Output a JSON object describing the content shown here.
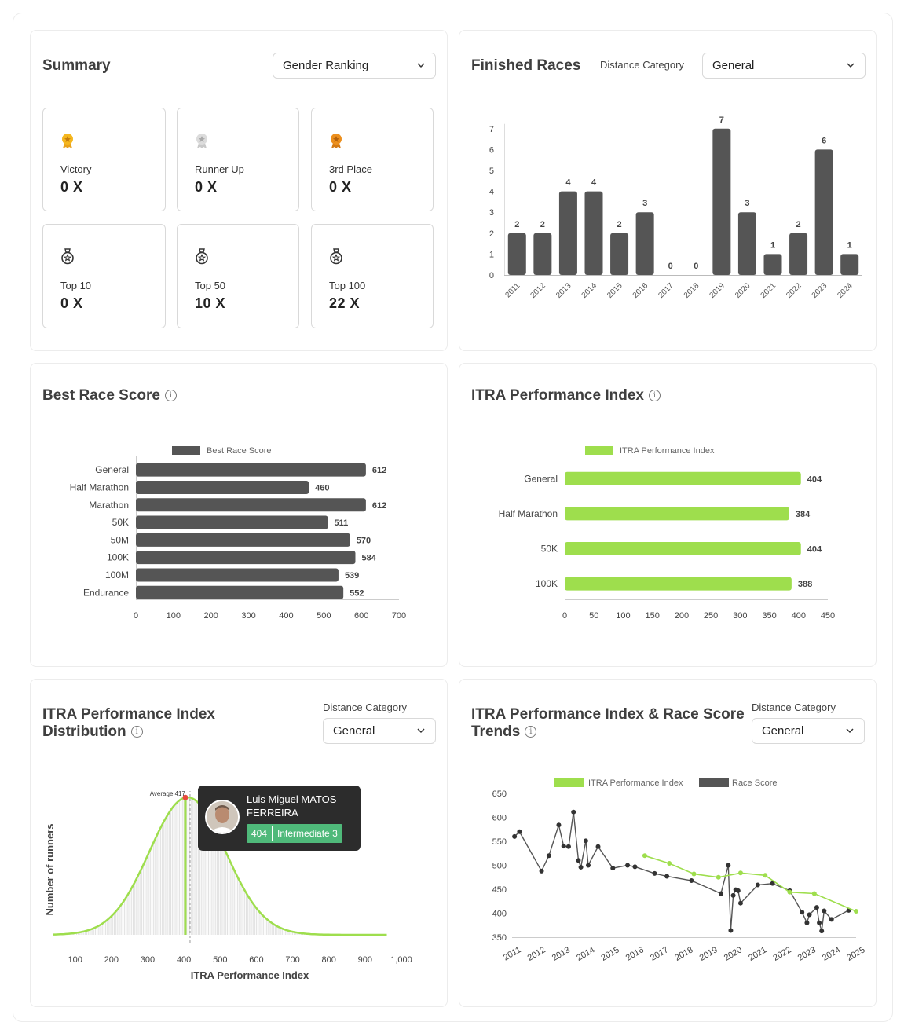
{
  "summary": {
    "title": "Summary",
    "ranking_select": "Gender Ranking",
    "tiles": [
      {
        "label": "Victory",
        "value": "0 X",
        "icon": "gold-medal-icon"
      },
      {
        "label": "Runner Up",
        "value": "0 X",
        "icon": "silver-medal-icon"
      },
      {
        "label": "3rd Place",
        "value": "0 X",
        "icon": "bronze-medal-icon"
      },
      {
        "label": "Top 10",
        "value": "0 X",
        "icon": "badge-icon"
      },
      {
        "label": "Top 50",
        "value": "10 X",
        "icon": "badge-icon"
      },
      {
        "label": "Top 100",
        "value": "22 X",
        "icon": "badge-icon"
      }
    ]
  },
  "finished_races": {
    "title": "Finished Races",
    "category_label": "Distance Category",
    "category_select": "General"
  },
  "best_race_score": {
    "title": "Best Race Score"
  },
  "itra_index": {
    "title": "ITRA Performance Index"
  },
  "distribution": {
    "title_line1": "ITRA Performance Index",
    "title_line2": "Distribution",
    "category_label": "Distance Category",
    "category_select": "General",
    "average_label": "Average:417",
    "y_label": "Number of runners",
    "x_label": "ITRA Performance Index",
    "tooltip": {
      "name": "Luis Miguel MATOS FERREIRA",
      "score": "404",
      "level": "Intermediate 3"
    }
  },
  "trends": {
    "title_line1": "ITRA Performance Index & Race Score",
    "title_line2": "Trends",
    "category_label": "Distance Category",
    "category_select": "General"
  },
  "colors": {
    "dark_bar": "#555555",
    "green": "#9ede4d",
    "tooltip_bg": "#2c2c2c",
    "badge": "#4fb97a"
  },
  "chart_data": [
    {
      "id": "finished-races",
      "type": "bar",
      "title": "Finished Races",
      "categories": [
        "2011",
        "2012",
        "2013",
        "2014",
        "2015",
        "2016",
        "2017",
        "2018",
        "2019",
        "2020",
        "2021",
        "2022",
        "2023",
        "2024"
      ],
      "values": [
        2,
        2,
        4,
        4,
        2,
        3,
        0,
        0,
        7,
        3,
        1,
        2,
        6,
        1
      ],
      "ylim": [
        0,
        7
      ],
      "yticks": [
        0,
        1,
        2,
        3,
        4,
        5,
        6,
        7
      ]
    },
    {
      "id": "best-race-score",
      "type": "bar",
      "orientation": "horizontal",
      "title": "Best Race Score",
      "legend": "Best Race Score",
      "categories": [
        "General",
        "Half Marathon",
        "Marathon",
        "50K",
        "50M",
        "100K",
        "100M",
        "Endurance"
      ],
      "values": [
        612,
        460,
        612,
        511,
        570,
        584,
        539,
        552
      ],
      "xlim": [
        0,
        700
      ],
      "xticks": [
        0,
        100,
        200,
        300,
        400,
        500,
        600,
        700
      ]
    },
    {
      "id": "itra-performance-index",
      "type": "bar",
      "orientation": "horizontal",
      "title": "ITRA Performance Index",
      "legend": "ITRA Performance Index",
      "categories": [
        "General",
        "Half Marathon",
        "50K",
        "100K"
      ],
      "values": [
        404,
        384,
        404,
        388
      ],
      "xlim": [
        0,
        450
      ],
      "xticks": [
        0,
        50,
        100,
        150,
        200,
        250,
        300,
        350,
        400,
        450
      ]
    },
    {
      "id": "distribution",
      "type": "area",
      "title": "ITRA Performance Index Distribution",
      "xlabel": "ITRA Performance Index",
      "ylabel": "Number of runners",
      "xlim": [
        40,
        1000
      ],
      "xticks": [
        100,
        200,
        300,
        400,
        500,
        600,
        700,
        800,
        900,
        1000
      ],
      "xtick_labels": [
        "100",
        "200",
        "300",
        "400",
        "500",
        "600",
        "700",
        "800",
        "900",
        "1,000"
      ],
      "average": 417,
      "runner_value": 404,
      "mean": 410,
      "sd": 105
    },
    {
      "id": "trends",
      "type": "line",
      "title": "ITRA Performance Index & Race Score Trends",
      "ylim": [
        350,
        650
      ],
      "yticks": [
        350,
        400,
        450,
        500,
        550,
        600,
        650
      ],
      "xlim": [
        2011,
        2025
      ],
      "xticks": [
        "2011",
        "2012",
        "2013",
        "2014",
        "2015",
        "2016",
        "2017",
        "2018",
        "2019",
        "2020",
        "2021",
        "2022",
        "2023",
        "2024",
        "2025"
      ],
      "series": [
        {
          "name": "ITRA Performance Index",
          "x": [
            2016.4,
            2017.4,
            2018.4,
            2019.4,
            2020.3,
            2021.3,
            2022.3,
            2023.3,
            2025.0
          ],
          "y": [
            520,
            504,
            482,
            475,
            484,
            479,
            444,
            441,
            404
          ]
        },
        {
          "name": "Race Score",
          "x": [
            2011.1,
            2011.3,
            2012.2,
            2012.5,
            2012.9,
            2013.1,
            2013.3,
            2013.5,
            2013.7,
            2013.8,
            2014.0,
            2014.1,
            2014.5,
            2015.1,
            2015.7,
            2016.0,
            2016.8,
            2017.3,
            2018.3,
            2019.5,
            2019.8,
            2019.9,
            2020.0,
            2020.1,
            2020.2,
            2020.3,
            2021.0,
            2021.6,
            2022.3,
            2022.8,
            2023.0,
            2023.1,
            2023.4,
            2023.5,
            2023.6,
            2023.7,
            2024.0,
            2024.7
          ],
          "y": [
            560,
            570,
            488,
            520,
            584,
            540,
            539,
            611,
            510,
            496,
            551,
            500,
            539,
            494,
            500,
            497,
            483,
            477,
            468,
            441,
            500,
            364,
            437,
            449,
            447,
            421,
            459,
            462,
            447,
            402,
            380,
            397,
            412,
            380,
            363,
            405,
            387,
            406
          ]
        }
      ]
    }
  ]
}
